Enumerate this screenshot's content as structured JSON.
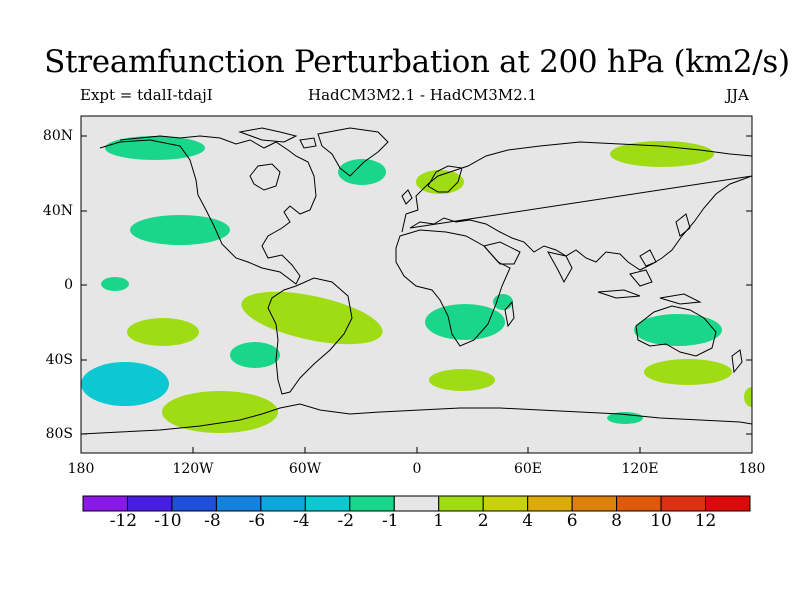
{
  "header": {
    "title": "Streamfunction Perturbation at 200 hPa (km2/s)",
    "experiment": "Expt = tdalI-tdajI",
    "models": "HadCM3M2.1 - HadCM3M2.1",
    "season": "JJA"
  },
  "map": {
    "background_color": "#e6e6e6",
    "coastline_color": "#000000",
    "lon_ticks": [
      "180",
      "120W",
      "60W",
      "0",
      "60E",
      "120E",
      "180"
    ],
    "lat_ticks": [
      "80N",
      "40N",
      "0",
      "40S",
      "80S"
    ],
    "anomalies": [
      {
        "region": "arctic-north-pacific",
        "sign": "negative",
        "level": "-2 to -1",
        "color": "#1ad68b"
      },
      {
        "region": "north-pacific-midlat",
        "sign": "negative",
        "level": "-2 to -1",
        "color": "#1ad68b"
      },
      {
        "region": "north-atlantic",
        "sign": "negative",
        "level": "-2 to -1",
        "color": "#1ad68b"
      },
      {
        "region": "scandinavia",
        "sign": "positive",
        "level": "1 to 2",
        "color": "#a0dc14"
      },
      {
        "region": "siberia-arctic",
        "sign": "positive",
        "level": "1 to 2",
        "color": "#a0dc14"
      },
      {
        "region": "south-america-tropics",
        "sign": "positive",
        "level": "1 to 2",
        "color": "#a0dc14"
      },
      {
        "region": "southern-africa",
        "sign": "negative",
        "level": "-2 to -1",
        "color": "#1ad68b"
      },
      {
        "region": "australia",
        "sign": "negative",
        "level": "-2 to -1",
        "color": "#1ad68b"
      },
      {
        "region": "south-pacific-west",
        "sign": "negative",
        "level": "-4 to -2",
        "color": "#0cc8d2"
      },
      {
        "region": "south-pacific-east",
        "sign": "positive",
        "level": "1 to 2",
        "color": "#a0dc14"
      },
      {
        "region": "south-atlantic",
        "sign": "positive",
        "level": "1 to 2",
        "color": "#a0dc14"
      },
      {
        "region": "south-indian-ocean",
        "sign": "positive",
        "level": "1 to 2",
        "color": "#a0dc14"
      }
    ]
  },
  "colorbar": {
    "labels": [
      "-12",
      "-10",
      "-8",
      "-6",
      "-4",
      "-2",
      "-1",
      "1",
      "2",
      "4",
      "6",
      "8",
      "10",
      "12"
    ],
    "colors": [
      "#8a18e6",
      "#4a1ee0",
      "#1e50dc",
      "#1482dc",
      "#0ca8dc",
      "#0cc8d2",
      "#1ad68b",
      "#e6e6e6",
      "#a0dc14",
      "#c8d20a",
      "#dcaa0a",
      "#dc820a",
      "#dc5a0a",
      "#dc3214",
      "#dc0a0a"
    ]
  }
}
